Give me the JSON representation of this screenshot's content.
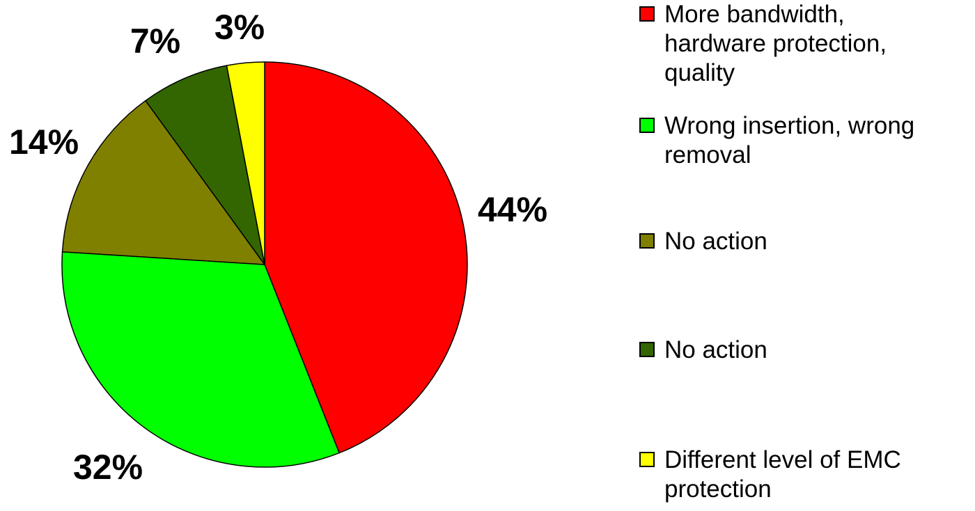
{
  "chart_data": {
    "type": "pie",
    "title": "",
    "start_angle_deg": 0,
    "direction": "clockwise",
    "legend_position": "right",
    "slices": [
      {
        "label": "More bandwidth,\nhardware protection,\nquality",
        "value": 44,
        "value_label": "44%",
        "color": "#ff0000"
      },
      {
        "label": "Wrong insertion, wrong\nremoval",
        "value": 32,
        "value_label": "32%",
        "color": "#00ff00"
      },
      {
        "label": "No action",
        "value": 14,
        "value_label": "14%",
        "color": "#808000"
      },
      {
        "label": "No action",
        "value": 7,
        "value_label": "7%",
        "color": "#336600"
      },
      {
        "label": "Different level of EMC\nprotection",
        "value": 3,
        "value_label": "3%",
        "color": "#ffff00"
      }
    ]
  }
}
